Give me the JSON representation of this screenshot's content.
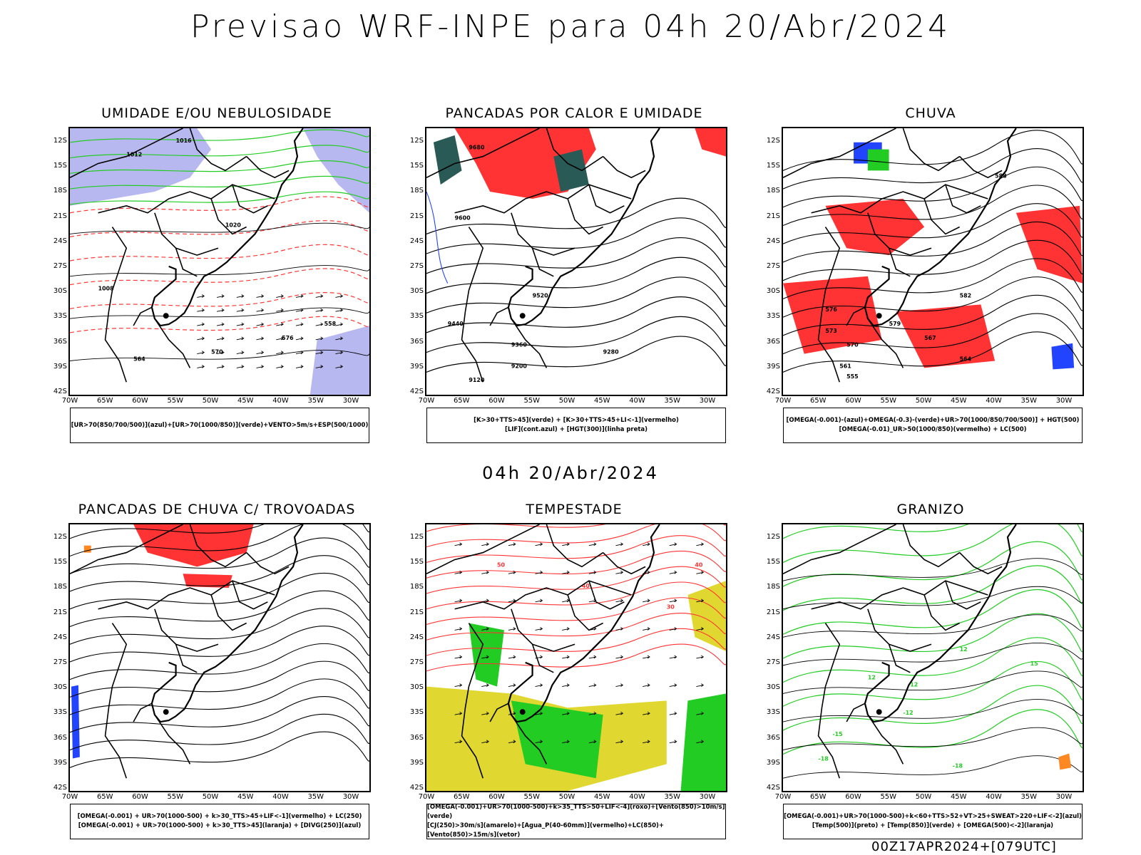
{
  "page": {
    "title": "Previsao WRF-INPE  para 04h 20/Abr/2024",
    "mid_date": "04h 20/Abr/2024",
    "run_stamp": "00Z17APR2024+[079UTC]"
  },
  "axes": {
    "lat_labels": [
      "12S",
      "15S",
      "18S",
      "21S",
      "24S",
      "27S",
      "30S",
      "33S",
      "36S",
      "39S",
      "42S"
    ],
    "lon_labels": [
      "70W",
      "65W",
      "60W",
      "55W",
      "50W",
      "45W",
      "40W",
      "35W",
      "30W"
    ]
  },
  "colors": {
    "green": "#22cc22",
    "red": "#ff3333",
    "blue": "#2244ff",
    "lavender": "#b8b8f0",
    "yellow": "#e0d830",
    "darkteal": "#2a5a55",
    "orange": "#ff8822",
    "black": "#000000"
  },
  "panels": [
    {
      "title": "UMIDADE E/OU NEBULOSIDADE",
      "legend": [
        "[UR>70(850/700/500)](azul)+[UR>70(1000/850)](verde)+VENTO>5m/s+ESP(500/1000)"
      ],
      "contour_labels": [
        "1012",
        "1016",
        "1020",
        "1008",
        "576",
        "570",
        "564",
        "558"
      ]
    },
    {
      "title": "PANCADAS POR CALOR E UMIDADE",
      "legend": [
        "[K>30+TTS>45](verde) + [K>30+TTS>45+LI<-1](vermelho)",
        "[LIF](cont.azul) + [HGT(300)](linha preta)"
      ],
      "contour_labels": [
        "9680",
        "9600",
        "9520",
        "9440",
        "9360",
        "9280",
        "9200",
        "9120"
      ]
    },
    {
      "title": "CHUVA",
      "legend": [
        "[OMEGA(-0.001)-(azul)+OMEGA(-0.3)-(verde)+UR>70(1000/850/700/500)] + HGT(500)",
        "[OMEGA(-0.01)_UR>50(1000/850)(vermelho) + LC(500)"
      ],
      "contour_labels": [
        "588",
        "582",
        "579",
        "576",
        "573",
        "570",
        "567",
        "564",
        "561",
        "555"
      ]
    },
    {
      "title": "PANCADAS DE CHUVA C/ TROVOADAS",
      "legend": [
        "[OMEGA(-0.001) + UR>70(1000-500) + k>30_TTS>45+LIF<-1](vermelho) + LC(250)",
        "[OMEGA(-0.001) + UR>70(1000-500) + k>30_TTS>45](laranja) + [DIVG(250)](azul)"
      ],
      "contour_labels": []
    },
    {
      "title": "TEMPESTADE",
      "legend": [
        "[OMEGA(-0.001)+UR>70(1000-500)+k>35_TTS>50+LIF<-4](roxo)+[Vento(850)>10m/s](verde)",
        "[CJ(250)>30m/s](amarelo)+[Agua_P(40-60mm)](vermelho)+LC(850)+[Vento(850)>15m/s](vetor)"
      ],
      "contour_labels": [
        "50",
        "40",
        "40",
        "30"
      ]
    },
    {
      "title": "GRANIZO",
      "legend": [
        "[OMEGA(-0.001)+UR>70(1000-500)+k<60+TTS>52+VT>25+SWEAT>220+LIF<-2](azul)",
        "[Temp(500)](preto) + [Temp(850)](verde) + [OMEGA(500)<-2](laranja)"
      ],
      "contour_labels": [
        "12",
        "12",
        "12",
        "15",
        "-15",
        "-18",
        "-18",
        "-12"
      ]
    }
  ]
}
